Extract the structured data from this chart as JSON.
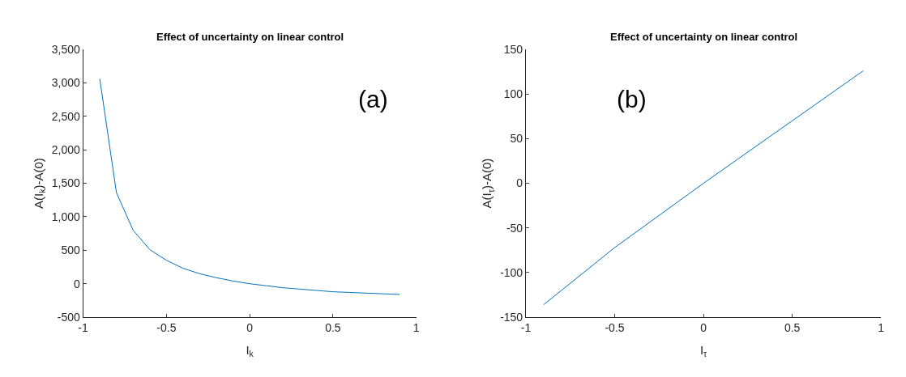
{
  "chart_data": [
    {
      "type": "line",
      "title": "Effect of uncertainty on linear control",
      "xlabel": "I$_{k}$",
      "ylabel": "A(I$_{k}$)-A(0)",
      "annotations": [
        "(a)"
      ],
      "x": [
        -0.9,
        -0.8,
        -0.7,
        -0.6,
        -0.5,
        -0.4,
        -0.3,
        -0.2,
        -0.1,
        0,
        0.1,
        0.2,
        0.3,
        0.4,
        0.5,
        0.6,
        0.7,
        0.8,
        0.9
      ],
      "series": [
        {
          "color": "#0072bd",
          "values": [
            3060,
            1360,
            800,
            510,
            350,
            230,
            150,
            90,
            40,
            0,
            -30,
            -60,
            -80,
            -100,
            -120,
            -130,
            -140,
            -150,
            -160
          ]
        }
      ],
      "xlim": [
        -1,
        1
      ],
      "xticks": [
        -1,
        -0.5,
        0,
        0.5,
        1
      ],
      "ylim": [
        -500,
        3500
      ],
      "yticks": [
        -500,
        0,
        500,
        {
          "value": 1000,
          "label": "1,000"
        },
        {
          "value": 1500,
          "label": "1,500"
        },
        {
          "value": 2000,
          "label": "2,000"
        },
        {
          "value": 2500,
          "label": "2,500"
        },
        {
          "value": 3000,
          "label": "3,000"
        },
        {
          "value": 3500,
          "label": "3,500"
        }
      ]
    },
    {
      "type": "line",
      "title": "Effect of uncertainty on linear control",
      "xlabel": "I$_{τ}$",
      "ylabel": "A(I$_{τ}$)-A(0)",
      "annotations": [
        "(b)"
      ],
      "x": [
        -0.9,
        -0.5,
        0,
        0.5,
        0.9
      ],
      "series": [
        {
          "color": "#0072bd",
          "values": [
            -136,
            -72,
            0,
            70,
            126
          ]
        }
      ],
      "xlim": [
        -1,
        1
      ],
      "xticks": [
        -1,
        -0.5,
        0,
        0.5,
        1
      ],
      "ylim": [
        -150,
        150
      ],
      "yticks": [
        -150,
        -100,
        -50,
        0,
        50,
        100,
        150
      ]
    }
  ]
}
